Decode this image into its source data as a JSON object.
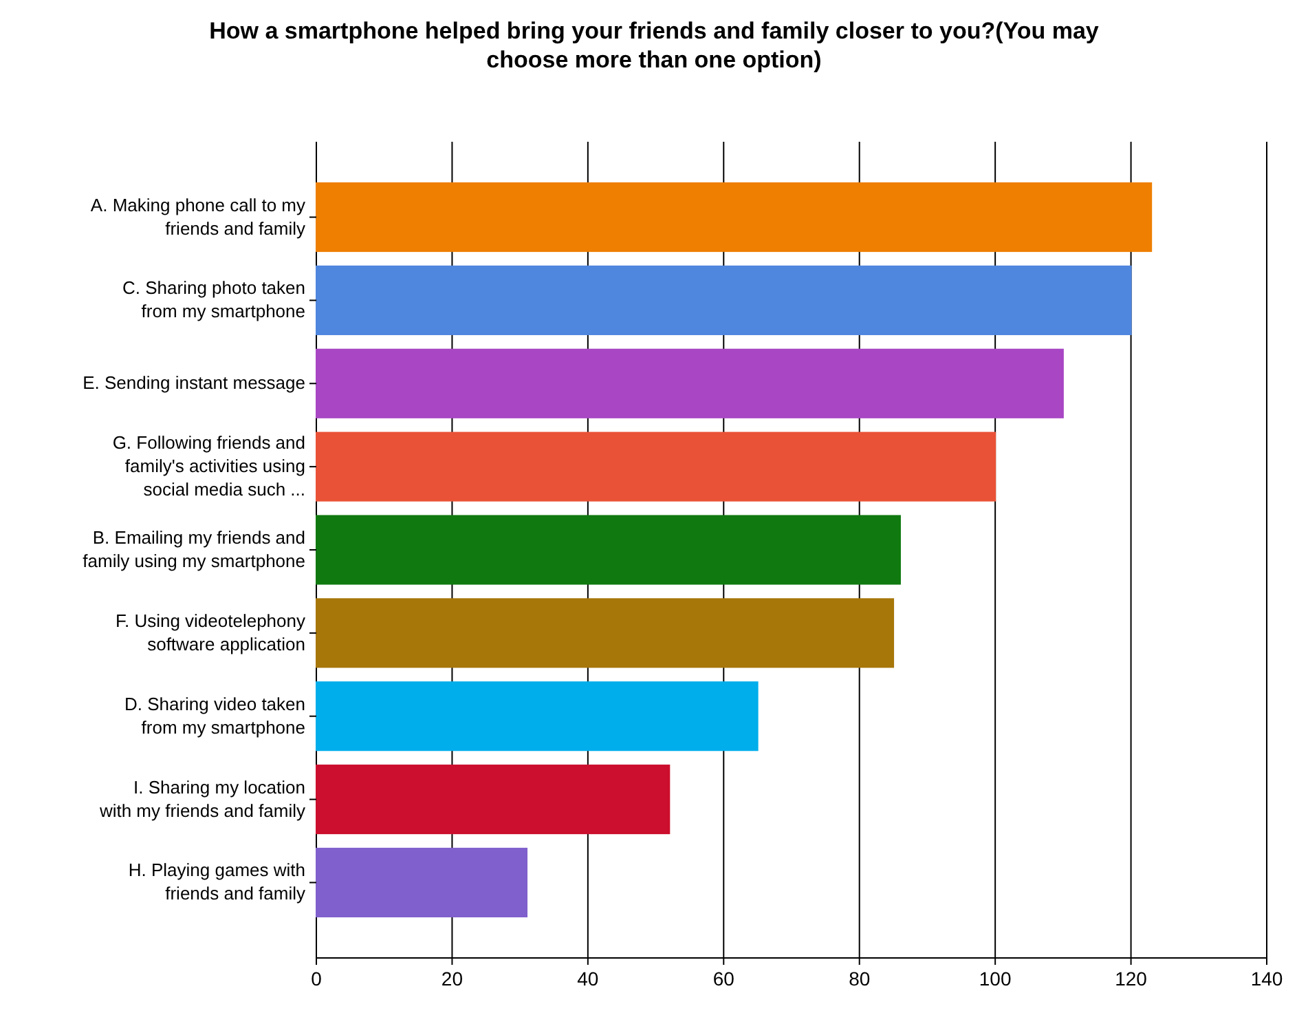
{
  "chart_data": {
    "type": "bar",
    "orientation": "horizontal",
    "title": "How a smartphone helped bring your friends and family closer to you?(You may choose more than one option)",
    "categories": [
      "A. Making phone call to my friends and family",
      "C. Sharing photo taken from my smartphone",
      "E. Sending instant message",
      "G. Following friends and family's activities using social media such ...",
      "B. Emailing my friends and family using my smartphone",
      "F. Using videotelephony software application",
      "D. Sharing video taken from my smartphone",
      "I. Sharing my location with my friends and family",
      "H. Playing games with friends and family"
    ],
    "values": [
      123,
      120,
      110,
      100,
      86,
      85,
      65,
      52,
      31
    ],
    "colors": [
      "#ee7f00",
      "#4f86de",
      "#a846c4",
      "#ea5237",
      "#107a10",
      "#a7770a",
      "#00aeeb",
      "#cc0f2e",
      "#8060cc"
    ],
    "xlim": [
      0,
      140
    ],
    "xticks": [
      0,
      20,
      40,
      60,
      80,
      100,
      120,
      140
    ],
    "grid": "x"
  }
}
